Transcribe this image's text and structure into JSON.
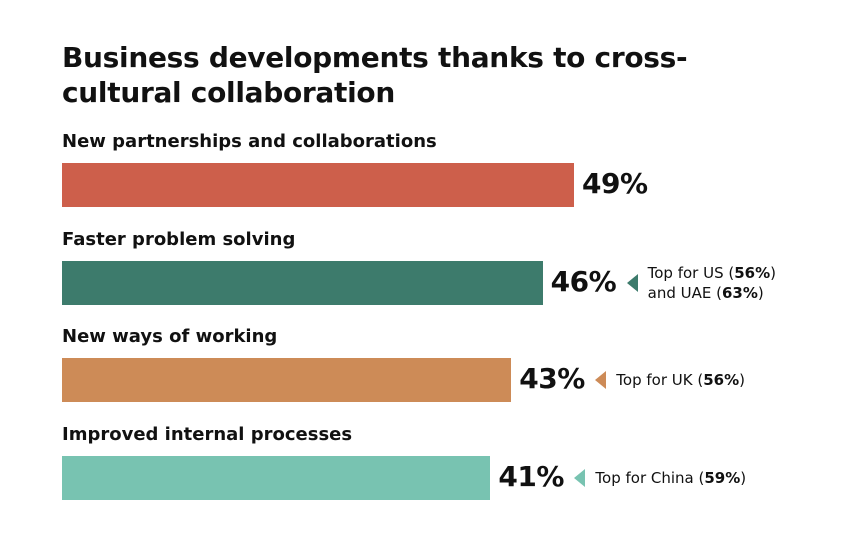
{
  "chart_data": {
    "type": "bar",
    "orientation": "horizontal",
    "title": "Business developments thanks to cross-cultural collaboration",
    "xlim": [
      0,
      60
    ],
    "grid": false,
    "categories": [
      "New partnerships and collaborations",
      "Faster problem solving",
      "New ways of working",
      "Improved internal processes"
    ],
    "values": [
      49,
      46,
      43,
      41
    ],
    "value_labels": [
      "49%",
      "46%",
      "43%",
      "41%"
    ],
    "colors": [
      "#cd5f4b",
      "#3d7b6c",
      "#cd8b57",
      "#78c3b1"
    ],
    "annotations": [
      null,
      {
        "lines": [
          [
            {
              "text": "Top for US (",
              "bold": false
            },
            {
              "text": "56%",
              "bold": true
            },
            {
              "text": ")",
              "bold": false
            }
          ],
          [
            {
              "text": "and UAE (",
              "bold": false
            },
            {
              "text": "63%",
              "bold": true
            },
            {
              "text": ")",
              "bold": false
            }
          ]
        ]
      },
      {
        "lines": [
          [
            {
              "text": "Top for UK (",
              "bold": false
            },
            {
              "text": "56%",
              "bold": true
            },
            {
              "text": ")",
              "bold": false
            }
          ]
        ]
      },
      {
        "lines": [
          [
            {
              "text": "Top for China (",
              "bold": false
            },
            {
              "text": "59%",
              "bold": true
            },
            {
              "text": ")",
              "bold": false
            }
          ]
        ]
      }
    ]
  }
}
